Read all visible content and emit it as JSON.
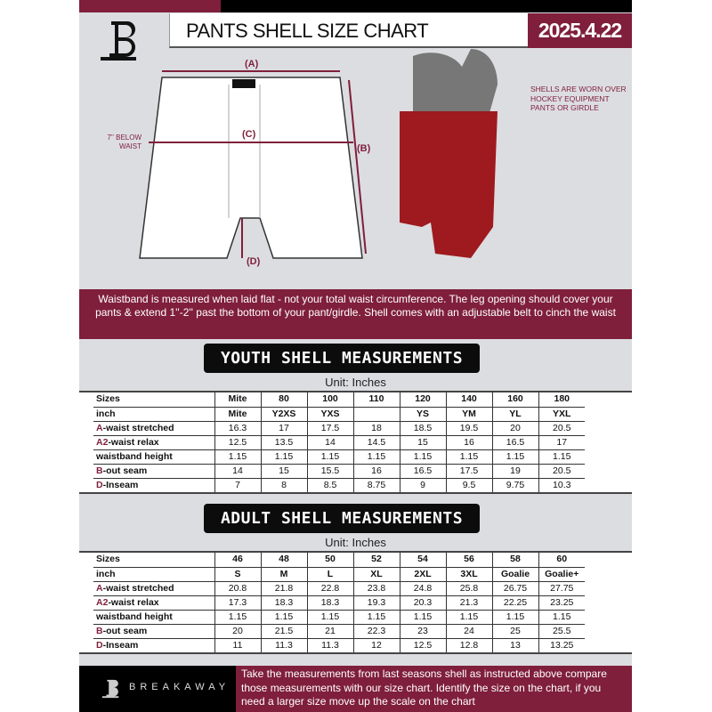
{
  "header": {
    "title": "PANTS SHELL SIZE CHART",
    "date": "2025.4.22",
    "logo_text": "B"
  },
  "diagram": {
    "label_a": "(A)",
    "label_b": "(B)",
    "label_c": "(C)",
    "label_d": "(D)",
    "below_waist": "7'' BELOW WAIST",
    "note": "SHELLS ARE WORN OVER HOCKEY EQUIPMENT PANTS OR GIRDLE"
  },
  "banner": "Waistband is measured when laid flat - not your total waist circumference. The leg opening should cover your pants & extend 1''-2'' past the bottom of your pant/girdle. Shell comes with an adjustable belt to cinch the waist",
  "youth": {
    "title": "YOUTH SHELL MEASUREMENTS",
    "unit": "Unit: Inches",
    "rows": [
      {
        "p": "",
        "l": "Sizes",
        "v": [
          "Mite",
          "80",
          "100",
          "110",
          "120",
          "140",
          "160",
          "180"
        ]
      },
      {
        "p": "",
        "l": "inch",
        "v": [
          "Mite",
          "Y2XS",
          "YXS",
          "",
          "YS",
          "YM",
          "YL",
          "YXL"
        ]
      },
      {
        "p": "A",
        "l": "-waist stretched",
        "v": [
          "16.3",
          "17",
          "17.5",
          "18",
          "18.5",
          "19.5",
          "20",
          "20.5"
        ]
      },
      {
        "p": "A2",
        "l": "-waist relax",
        "v": [
          "12.5",
          "13.5",
          "14",
          "14.5",
          "15",
          "16",
          "16.5",
          "17"
        ]
      },
      {
        "p": "",
        "l": "waistband height",
        "v": [
          "1.15",
          "1.15",
          "1.15",
          "1.15",
          "1.15",
          "1.15",
          "1.15",
          "1.15"
        ]
      },
      {
        "p": "B",
        "l": "-out seam",
        "v": [
          "14",
          "15",
          "15.5",
          "16",
          "16.5",
          "17.5",
          "19",
          "20.5"
        ]
      },
      {
        "p": "D",
        "l": "-Inseam",
        "v": [
          "7",
          "8",
          "8.5",
          "8.75",
          "9",
          "9.5",
          "9.75",
          "10.3"
        ]
      }
    ]
  },
  "adult": {
    "title": "ADULT SHELL MEASUREMENTS",
    "unit": "Unit: Inches",
    "rows": [
      {
        "p": "",
        "l": "Sizes",
        "v": [
          "46",
          "48",
          "50",
          "52",
          "54",
          "56",
          "58",
          "60"
        ]
      },
      {
        "p": "",
        "l": "inch",
        "v": [
          "S",
          "M",
          "L",
          "XL",
          "2XL",
          "3XL",
          "Goalie",
          "Goalie+"
        ]
      },
      {
        "p": "A",
        "l": "-waist stretched",
        "v": [
          "20.8",
          "21.8",
          "22.8",
          "23.8",
          "24.8",
          "25.8",
          "26.75",
          "27.75"
        ]
      },
      {
        "p": "A2",
        "l": "-waist relax",
        "v": [
          "17.3",
          "18.3",
          "18.3",
          "19.3",
          "20.3",
          "21.3",
          "22.25",
          "23.25"
        ]
      },
      {
        "p": "",
        "l": "waistband height",
        "v": [
          "1.15",
          "1.15",
          "1.15",
          "1.15",
          "1.15",
          "1.15",
          "1.15",
          "1.15"
        ]
      },
      {
        "p": "B",
        "l": "-out seam",
        "v": [
          "20",
          "21.5",
          "21",
          "22.3",
          "23",
          "24",
          "25",
          "25.5"
        ]
      },
      {
        "p": "D",
        "l": "-Inseam",
        "v": [
          "11",
          "11.3",
          "11.3",
          "12",
          "12.5",
          "12.8",
          "13",
          "13.25"
        ]
      }
    ]
  },
  "footer": {
    "brand": "BREAKAWAY",
    "text": "Take the measurements from last seasons shell as instructed above compare those measurements  with our size chart. Identify the size on the chart, if you need a larger size move up the scale on the chart"
  },
  "colors": {
    "brand": "#7f1f3b",
    "background": "#dcdde1"
  }
}
